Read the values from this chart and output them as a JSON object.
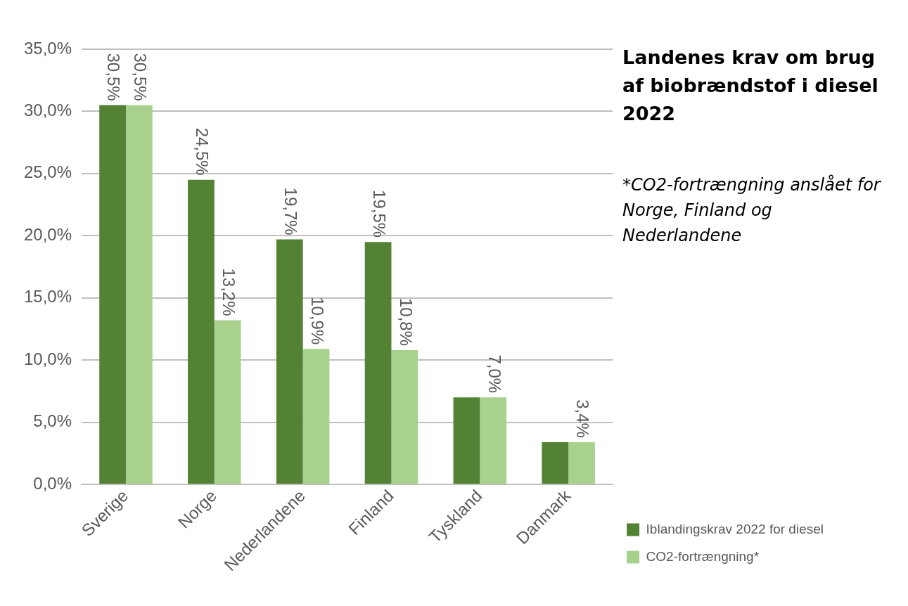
{
  "chart_data": {
    "type": "bar",
    "title": "Landenes krav om brug af biobrændstof i diesel 2022",
    "annotations": [
      "*CO2-fortrængning anslået for Norge, Finland og Nederlandene"
    ],
    "categories": [
      "Sverige",
      "Norge",
      "Nederlandene",
      "Finland",
      "Tyskland",
      "Danmark"
    ],
    "series": [
      {
        "name": "Iblandingskrav 2022 for diesel",
        "color": "#548235",
        "values": [
          30.5,
          24.5,
          19.7,
          19.5,
          7.0,
          3.4
        ],
        "value_labels": [
          "30,5%",
          "24,5%",
          "19,7%",
          "19,5%",
          null,
          null
        ]
      },
      {
        "name": "CO2-fortrængning*",
        "color": "#a9d18e",
        "values": [
          30.5,
          13.2,
          10.9,
          10.8,
          7.0,
          3.4
        ],
        "value_labels": [
          "30,5%",
          "13,2%",
          "10,9%",
          "10,8%",
          "7,0%",
          "3,4%"
        ]
      }
    ],
    "ylim": [
      0,
      35
    ],
    "yticks": [
      {
        "value": 0,
        "label": "0,0%"
      },
      {
        "value": 5,
        "label": "5,0%"
      },
      {
        "value": 10,
        "label": "10,0%"
      },
      {
        "value": 15,
        "label": "15,0%"
      },
      {
        "value": 20,
        "label": "20,0%"
      },
      {
        "value": 25,
        "label": "25,0%"
      },
      {
        "value": 30,
        "label": "30,0%"
      },
      {
        "value": 35,
        "label": "35,0%"
      }
    ],
    "grid": "y",
    "legend": "right"
  }
}
